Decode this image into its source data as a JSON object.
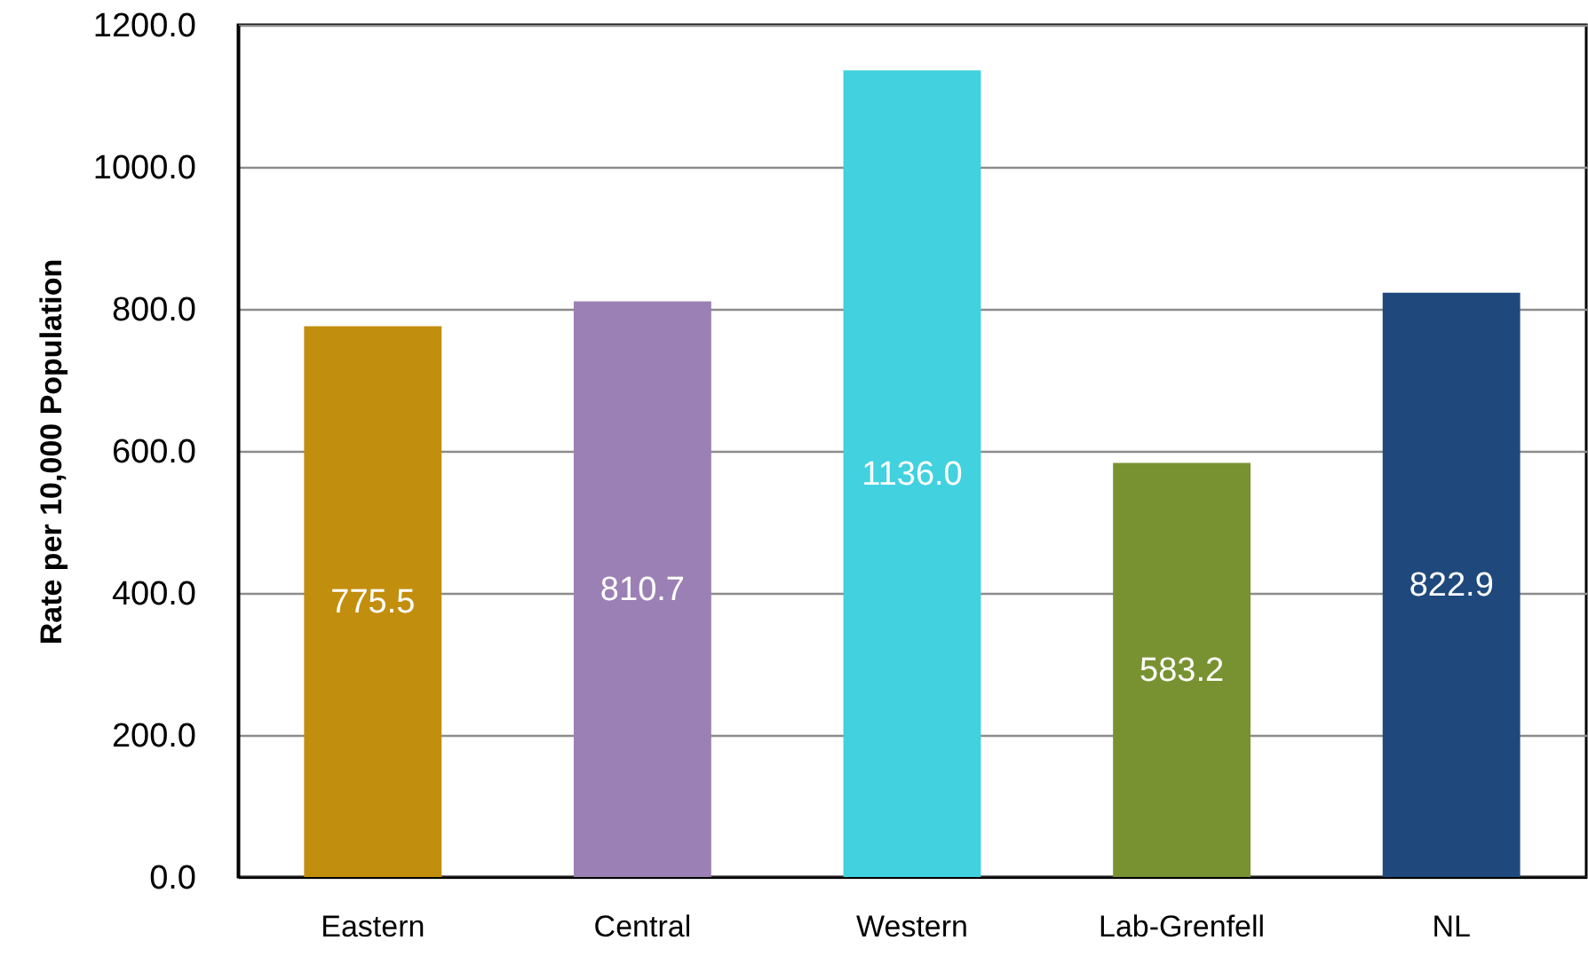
{
  "chart_data": {
    "type": "bar",
    "ylabel": "Rate per 10,000 Population",
    "categories": [
      "Eastern",
      "Central",
      "Western",
      "Lab-Grenfell",
      "NL"
    ],
    "values": [
      775.5,
      810.7,
      1136.0,
      583.2,
      822.9
    ],
    "colors": [
      "#c28e0e",
      "#9b80b5",
      "#41d1df",
      "#789231",
      "#1f497d"
    ],
    "value_labels": [
      "775.5",
      "810.7",
      "1136.0",
      "583.2",
      "822.9"
    ],
    "ylim": [
      0,
      1200
    ],
    "yticks": [
      {
        "value": 0,
        "label": "0.0"
      },
      {
        "value": 200,
        "label": "200.0"
      },
      {
        "value": 400,
        "label": "400.0"
      },
      {
        "value": 600,
        "label": "600.0"
      },
      {
        "value": 800,
        "label": "800.0"
      },
      {
        "value": 1000,
        "label": "1000.0"
      },
      {
        "value": 1200,
        "label": "1200.0"
      }
    ],
    "grid": "y"
  }
}
